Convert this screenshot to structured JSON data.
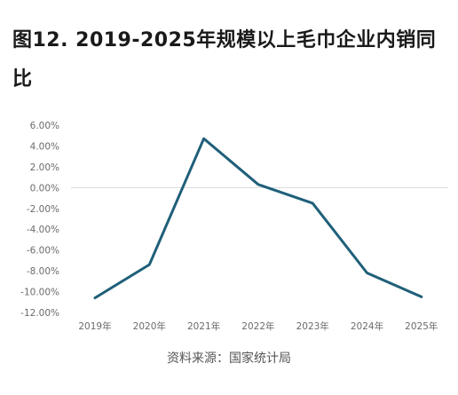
{
  "title": "图12. 2019-2025年规模以上毛巾企业内销同比",
  "source": "资料来源：国家统计局",
  "chart_data": {
    "type": "line",
    "title": "图12. 2019-2025年规模以上毛巾企业内销同比",
    "xlabel": "",
    "ylabel": "",
    "categories": [
      "2019年",
      "2020年",
      "2021年",
      "2022年",
      "2023年",
      "2024年",
      "2025年"
    ],
    "series": [
      {
        "values": [
          -10.6,
          -7.4,
          4.7,
          0.3,
          -1.5,
          -8.2,
          -10.5
        ]
      }
    ],
    "yticks": [
      "6.00%",
      "4.00%",
      "2.00%",
      "0.00%",
      "-2.00%",
      "-4.00%",
      "-6.00%",
      "-8.00%",
      "-10.00%",
      "-12.00%"
    ],
    "ylim": [
      -12,
      6
    ],
    "grid": false,
    "legend": "none",
    "line_color": "#1f5f79",
    "zero_line_color": "#d9d9d9"
  }
}
